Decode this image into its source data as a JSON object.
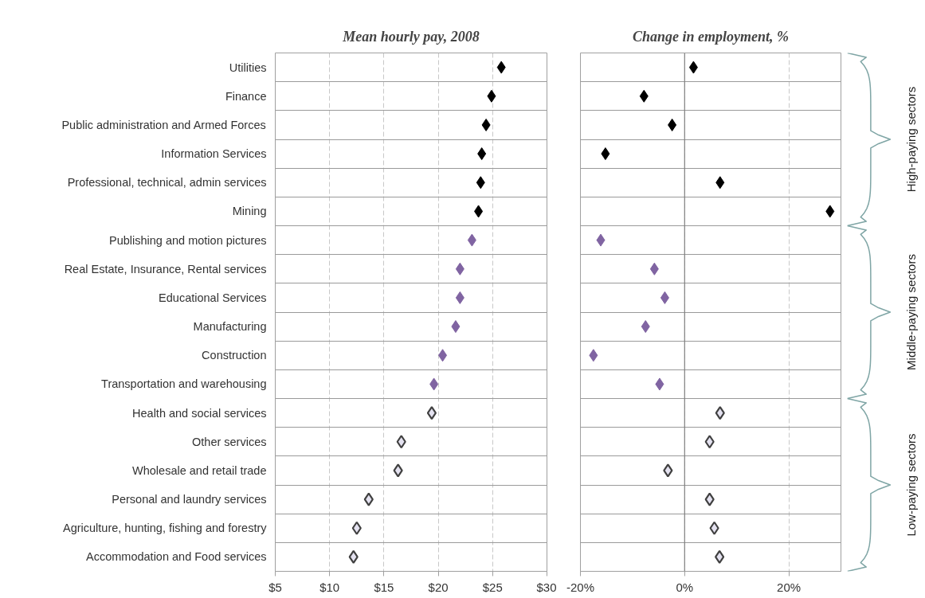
{
  "chart_data": [
    {
      "type": "scatter",
      "title": "Mean hourly pay, 2008",
      "orientation": "horizontal",
      "marker": "diamond",
      "grid": true,
      "categories": [
        "Utilities",
        "Finance",
        "Public administration and Armed Forces",
        "Information Services",
        "Professional, technical, admin services",
        "Mining",
        "Publishing and motion pictures",
        "Real Estate, Insurance, Rental services",
        "Educational Services",
        "Manufacturing",
        "Construction",
        "Transportation and warehousing",
        "Health and social services",
        "Other services",
        "Wholesale and retail trade",
        "Personal and laundry services",
        "Agriculture, hunting, fishing and forestry",
        "Accommodation and Food services"
      ],
      "xlim": [
        5,
        30
      ],
      "xticks": [
        {
          "value": 5,
          "label": "$5"
        },
        {
          "value": 10,
          "label": "$10"
        },
        {
          "value": 15,
          "label": "$15"
        },
        {
          "value": 20,
          "label": "$20"
        },
        {
          "value": 25,
          "label": "$25"
        },
        {
          "value": 30,
          "label": "$30"
        }
      ],
      "series": [
        {
          "color": "#000000",
          "values": [
            25.8,
            24.9,
            24.4,
            24.0,
            23.9,
            23.7,
            null,
            null,
            null,
            null,
            null,
            null,
            null,
            null,
            null,
            null,
            null,
            null
          ]
        },
        {
          "color": "#8064a2",
          "values": [
            null,
            null,
            null,
            null,
            null,
            null,
            23.1,
            22.0,
            22.0,
            21.6,
            20.4,
            19.6,
            null,
            null,
            null,
            null,
            null,
            null
          ]
        },
        {
          "color": "#404040",
          "values": [
            null,
            null,
            null,
            null,
            null,
            null,
            null,
            null,
            null,
            null,
            null,
            null,
            19.4,
            16.6,
            16.3,
            13.6,
            12.5,
            12.2
          ]
        }
      ]
    },
    {
      "type": "scatter",
      "title": "Change in employment, %",
      "orientation": "horizontal",
      "marker": "diamond",
      "grid": true,
      "categories": [
        null,
        null,
        null,
        null,
        null,
        null,
        null,
        null,
        null,
        null,
        null,
        null,
        null,
        null,
        null,
        null,
        null,
        null
      ],
      "xlim": [
        -20,
        30
      ],
      "xticks": [
        {
          "value": -20,
          "label": "-20%"
        },
        {
          "value": 0,
          "label": "0%"
        },
        {
          "value": 20,
          "label": "20%"
        }
      ],
      "ref_lines": [
        {
          "axis": "x",
          "value": 0,
          "color": "#808080",
          "line_style": "solid"
        }
      ],
      "annotations": [
        "High-paying sectors",
        "Middle-paying sectors",
        "Low-paying sectors"
      ],
      "series": [
        {
          "color": "#000000",
          "values": [
            1.7,
            -7.8,
            -2.4,
            -15.2,
            6.8,
            27.9,
            null,
            null,
            null,
            null,
            null,
            null,
            null,
            null,
            null,
            null,
            null,
            null
          ]
        },
        {
          "color": "#8064a2",
          "values": [
            null,
            null,
            null,
            null,
            null,
            null,
            -16.1,
            -5.8,
            -3.8,
            -7.5,
            -17.5,
            -4.8,
            null,
            null,
            null,
            null,
            null,
            null
          ]
        },
        {
          "color": "#404040",
          "values": [
            null,
            null,
            null,
            null,
            null,
            null,
            null,
            null,
            null,
            null,
            null,
            null,
            6.8,
            4.8,
            -3.2,
            4.8,
            5.7,
            6.7
          ]
        }
      ]
    }
  ]
}
